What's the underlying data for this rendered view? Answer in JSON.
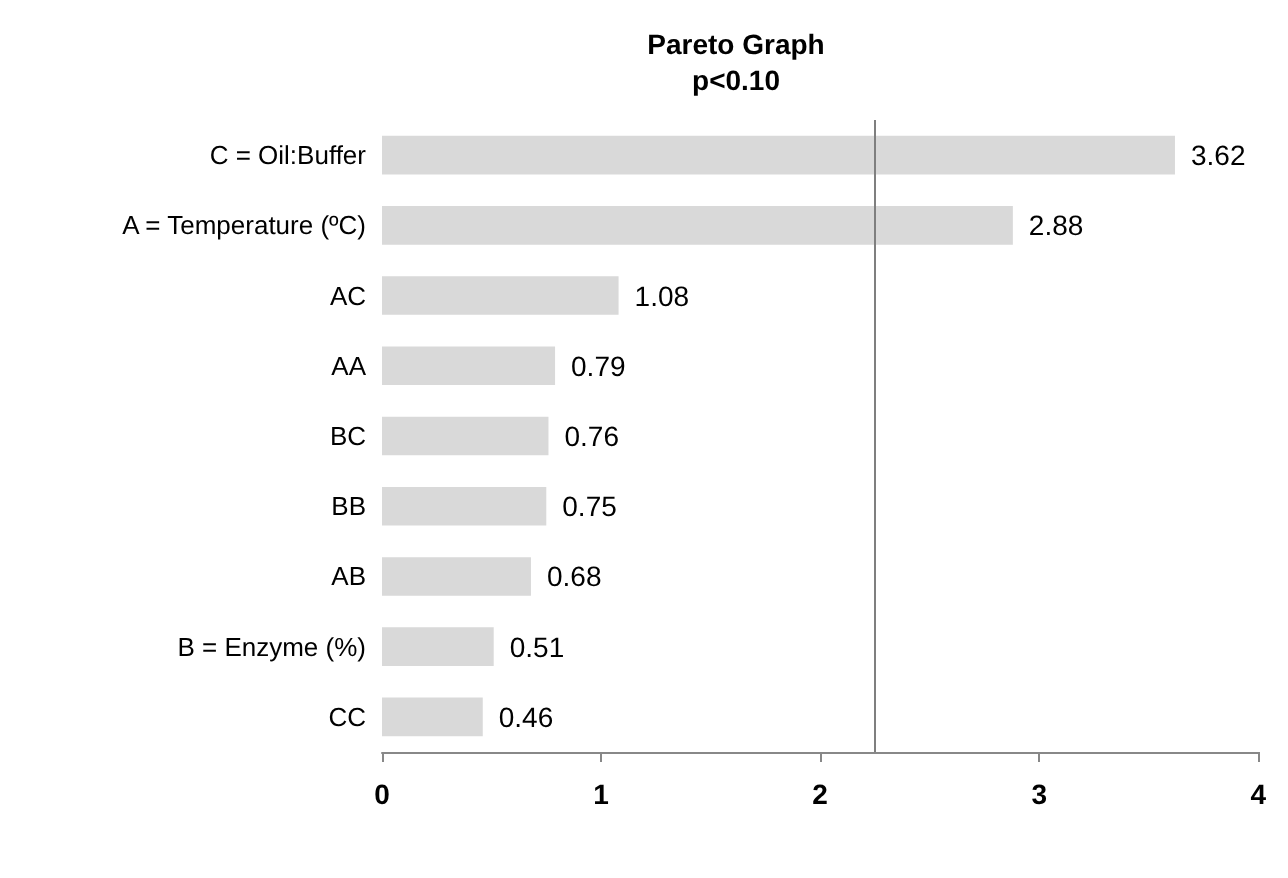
{
  "chart_data": {
    "type": "bar",
    "orientation": "horizontal",
    "title": "Pareto Graph",
    "subtitle": "p<0.10",
    "categories": [
      "C = Oil:Buffer",
      "A = Temperature (ºC)",
      "AC",
      "AA",
      "BC",
      "BB",
      "AB",
      "B = Enzyme (%)",
      "CC"
    ],
    "values": [
      3.62,
      2.88,
      1.08,
      0.79,
      0.76,
      0.75,
      0.68,
      0.51,
      0.46
    ],
    "color": "#d9d9d9",
    "data_labels": true,
    "xlim": [
      0,
      4
    ],
    "xticks": [
      0,
      1,
      2,
      3,
      4
    ],
    "grid": false,
    "ref_lines": [
      {
        "axis": "x",
        "value": 2.25,
        "color": "#7f7f7f"
      }
    ]
  }
}
